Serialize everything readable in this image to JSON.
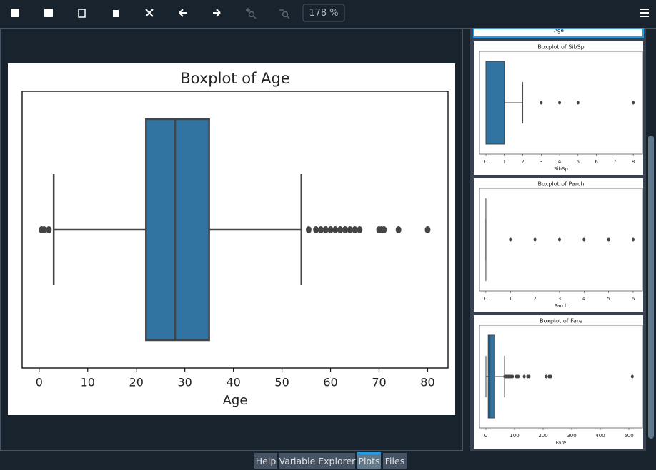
{
  "toolbar": {
    "zoom": "178 %"
  },
  "thumbnail_top": {
    "xlabel": "Age"
  },
  "chart_data": [
    {
      "type": "boxplot",
      "title": "Boxplot of Age",
      "xlabel": "Age",
      "color": "#3274a1",
      "whisker_low": 3,
      "q1": 22,
      "median": 28,
      "q3": 35,
      "whisker_high": 54,
      "outliers": [
        0.5,
        1,
        2,
        55.5,
        57,
        58,
        59,
        60,
        61,
        62,
        63,
        64,
        65,
        66,
        70,
        70.5,
        71,
        74,
        80
      ],
      "xlim": [
        -3.5,
        84.2
      ],
      "xticks": [
        0,
        10,
        20,
        30,
        40,
        50,
        60,
        70,
        80
      ]
    },
    {
      "type": "boxplot",
      "title": "Boxplot of SibSp",
      "xlabel": "SibSp",
      "color": "#3274a1",
      "whisker_low": 0,
      "q1": 0,
      "median": 0,
      "q3": 1,
      "whisker_high": 2,
      "outliers": [
        3,
        4,
        5,
        8
      ],
      "xlim": [
        -0.35,
        8.5
      ],
      "xticks": [
        0,
        1,
        2,
        3,
        4,
        5,
        6,
        7,
        8
      ]
    },
    {
      "type": "boxplot",
      "title": "Boxplot of Parch",
      "xlabel": "Parch",
      "color": "#3274a1",
      "whisker_low": 0,
      "q1": 0,
      "median": 0,
      "q3": 0,
      "whisker_high": 0,
      "outliers": [
        1,
        2,
        3,
        4,
        5,
        6
      ],
      "xlim": [
        -0.26,
        6.38
      ],
      "xticks": [
        0,
        1,
        2,
        3,
        4,
        5,
        6
      ]
    },
    {
      "type": "boxplot",
      "title": "Boxplot of Fare",
      "xlabel": "Fare",
      "color": "#3274a1",
      "whisker_low": 0,
      "q1": 8,
      "median": 14.5,
      "q3": 31,
      "whisker_high": 65,
      "outliers": [
        66,
        70,
        73,
        77,
        80,
        83,
        86,
        90,
        93,
        106,
        110,
        113,
        134,
        146,
        151,
        211,
        221,
        227,
        512
      ],
      "xlim": [
        -22.5,
        547.5
      ],
      "xticks": [
        0,
        100,
        200,
        300,
        400,
        500
      ]
    }
  ],
  "tabs": [
    "Help",
    "Variable Explorer",
    "Plots",
    "Files"
  ],
  "active_tab": 2
}
